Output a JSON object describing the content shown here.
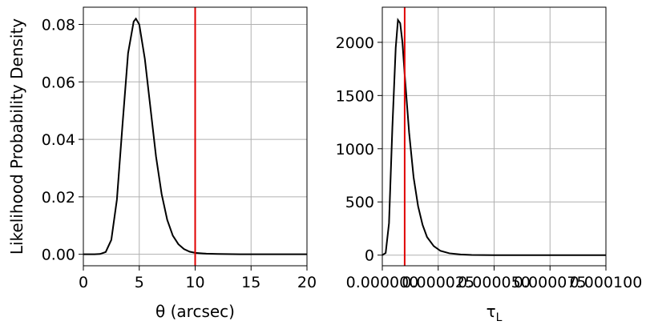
{
  "chart_data": [
    {
      "type": "line",
      "xlabel": "θ (arcsec)",
      "ylabel": "Likelihood Probability Density",
      "xlim": [
        0,
        20
      ],
      "ylim": [
        -0.004,
        0.086
      ],
      "xticks": [
        0,
        5,
        10,
        15,
        20
      ],
      "xtick_labels": [
        "0",
        "5",
        "10",
        "15",
        "20"
      ],
      "yticks": [
        0,
        0.02,
        0.04,
        0.06,
        0.08
      ],
      "ytick_labels": [
        "0.00",
        "0.02",
        "0.04",
        "0.06",
        "0.08"
      ],
      "grid": true,
      "line_color": "#000000",
      "series": [
        {
          "x": [
            0,
            1,
            1.5,
            2,
            2.5,
            3,
            3.5,
            4,
            4.5,
            4.7,
            5,
            5.5,
            6,
            6.5,
            7,
            7.5,
            8,
            8.5,
            9,
            9.5,
            10,
            11,
            12,
            14,
            16,
            18,
            20
          ],
          "values": [
            0,
            0,
            0.0001,
            0.0008,
            0.005,
            0.019,
            0.045,
            0.07,
            0.081,
            0.082,
            0.08,
            0.068,
            0.051,
            0.034,
            0.021,
            0.012,
            0.0065,
            0.0035,
            0.0018,
            0.0009,
            0.0005,
            0.0002,
            0.0001,
            0,
            0,
            0,
            0
          ]
        }
      ],
      "vline": {
        "x": 10,
        "color": "#e00000"
      }
    },
    {
      "type": "line",
      "xlabel": "τ",
      "xlabel_sub": "L",
      "ylabel": "",
      "xlim": [
        0,
        0.0001
      ],
      "ylim": [
        -100,
        2330
      ],
      "xticks": [
        0,
        2.5e-05,
        5e-05,
        7.5e-05,
        0.0001
      ],
      "xtick_labels": [
        "0.000000",
        "0.000025",
        "0.000050",
        "0.000075",
        "0.000100"
      ],
      "yticks": [
        0,
        500,
        1000,
        1500,
        2000
      ],
      "ytick_labels": [
        "0",
        "500",
        "1000",
        "1500",
        "2000"
      ],
      "grid": true,
      "line_color": "#000000",
      "series": [
        {
          "x": [
            0,
            1.5e-06,
            3e-06,
            4.5e-06,
            6e-06,
            7e-06,
            8e-06,
            9e-06,
            1e-05,
            1.2e-05,
            1.4e-05,
            1.6e-05,
            1.8e-05,
            2e-05,
            2.3e-05,
            2.6e-05,
            3e-05,
            3.5e-05,
            4e-05,
            5e-05,
            6e-05,
            8e-05,
            0.0001
          ],
          "values": [
            0,
            20,
            300,
            1200,
            1950,
            2210,
            2180,
            2000,
            1700,
            1150,
            730,
            460,
            285,
            170,
            85,
            40,
            17,
            6,
            2,
            0,
            0,
            0,
            0
          ]
        }
      ],
      "vline": {
        "x": 1e-05,
        "color": "#e00000"
      }
    }
  ]
}
